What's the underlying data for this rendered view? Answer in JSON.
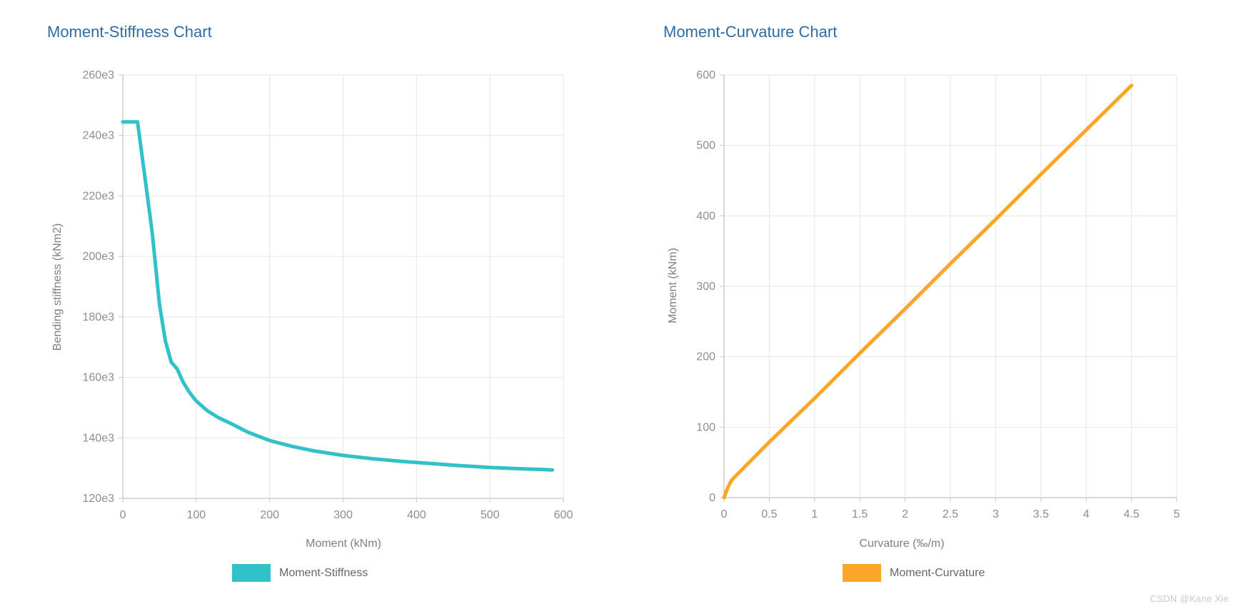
{
  "page": {
    "watermark": "CSDN @Kane Xie"
  },
  "colors": {
    "title_blue": "#2d6ca5",
    "grid": "#e6e6e6",
    "axis": "#b5b5b5",
    "tick": "#c9c9c9",
    "tick_text": "#8d8d8d",
    "legend_text": "#666666"
  },
  "chart_data": [
    {
      "type": "line",
      "title": "Moment-Stiffness Chart",
      "xlabel": "Moment (kNm)",
      "ylabel": "Bending stiffness (kNm2)",
      "legend": [
        "Moment-Stiffness"
      ],
      "legend_position": "bottom",
      "line_color": "#31C1C8",
      "grid": true,
      "xlim": [
        0,
        600
      ],
      "ylim": [
        120000,
        260000
      ],
      "x_ticks": [
        0,
        100,
        200,
        300,
        400,
        500,
        600
      ],
      "x_tick_labels": [
        "0",
        "100",
        "200",
        "300",
        "400",
        "500",
        "600"
      ],
      "y_ticks": [
        120000,
        140000,
        160000,
        180000,
        200000,
        220000,
        240000,
        260000
      ],
      "y_tick_labels": [
        "120e3",
        "140e3",
        "160e3",
        "180e3",
        "200e3",
        "220e3",
        "240e3",
        "260e3"
      ],
      "series": [
        {
          "name": "Moment-Stiffness",
          "points": [
            [
              0,
              244500
            ],
            [
              20,
              244500
            ],
            [
              28,
              230000
            ],
            [
              40,
              208000
            ],
            [
              50,
              184000
            ],
            [
              58,
              172000
            ],
            [
              66,
              165000
            ],
            [
              74,
              162800
            ],
            [
              82,
              158500
            ],
            [
              90,
              155300
            ],
            [
              100,
              152200
            ],
            [
              115,
              149000
            ],
            [
              130,
              146700
            ],
            [
              150,
              144400
            ],
            [
              170,
              141900
            ],
            [
              200,
              139100
            ],
            [
              230,
              137200
            ],
            [
              260,
              135700
            ],
            [
              300,
              134200
            ],
            [
              340,
              133100
            ],
            [
              380,
              132200
            ],
            [
              420,
              131500
            ],
            [
              460,
              130800
            ],
            [
              500,
              130200
            ],
            [
              540,
              129800
            ],
            [
              585,
              129400
            ]
          ]
        }
      ]
    },
    {
      "type": "line",
      "title": "Moment-Curvature Chart",
      "xlabel": "Curvature (‰/m)",
      "ylabel": "Moment (kNm)",
      "legend": [
        "Moment-Curvature"
      ],
      "legend_position": "bottom",
      "line_color": "#FAA628",
      "grid": true,
      "xlim": [
        0,
        5
      ],
      "ylim": [
        0,
        600
      ],
      "x_ticks": [
        0,
        0.5,
        1,
        1.5,
        2,
        2.5,
        3,
        3.5,
        4,
        4.5,
        5
      ],
      "x_tick_labels": [
        "0",
        "0.5",
        "1",
        "1.5",
        "2",
        "2.5",
        "3",
        "3.5",
        "4",
        "4.5",
        "5"
      ],
      "y_ticks": [
        0,
        100,
        200,
        300,
        400,
        500,
        600
      ],
      "y_tick_labels": [
        "0",
        "100",
        "200",
        "300",
        "400",
        "500",
        "600"
      ],
      "series": [
        {
          "name": "Moment-Curvature",
          "points": [
            [
              0,
              0
            ],
            [
              0.04,
              14
            ],
            [
              0.08,
              24
            ],
            [
              0.13,
              31
            ],
            [
              0.2,
              40
            ],
            [
              0.3,
              53
            ],
            [
              0.5,
              79
            ],
            [
              0.75,
              110
            ],
            [
              1,
              141
            ],
            [
              1.5,
              205
            ],
            [
              2,
              268
            ],
            [
              2.5,
              332
            ],
            [
              3,
              395
            ],
            [
              3.5,
              459
            ],
            [
              4,
              522
            ],
            [
              4.5,
              585
            ]
          ]
        }
      ]
    }
  ]
}
